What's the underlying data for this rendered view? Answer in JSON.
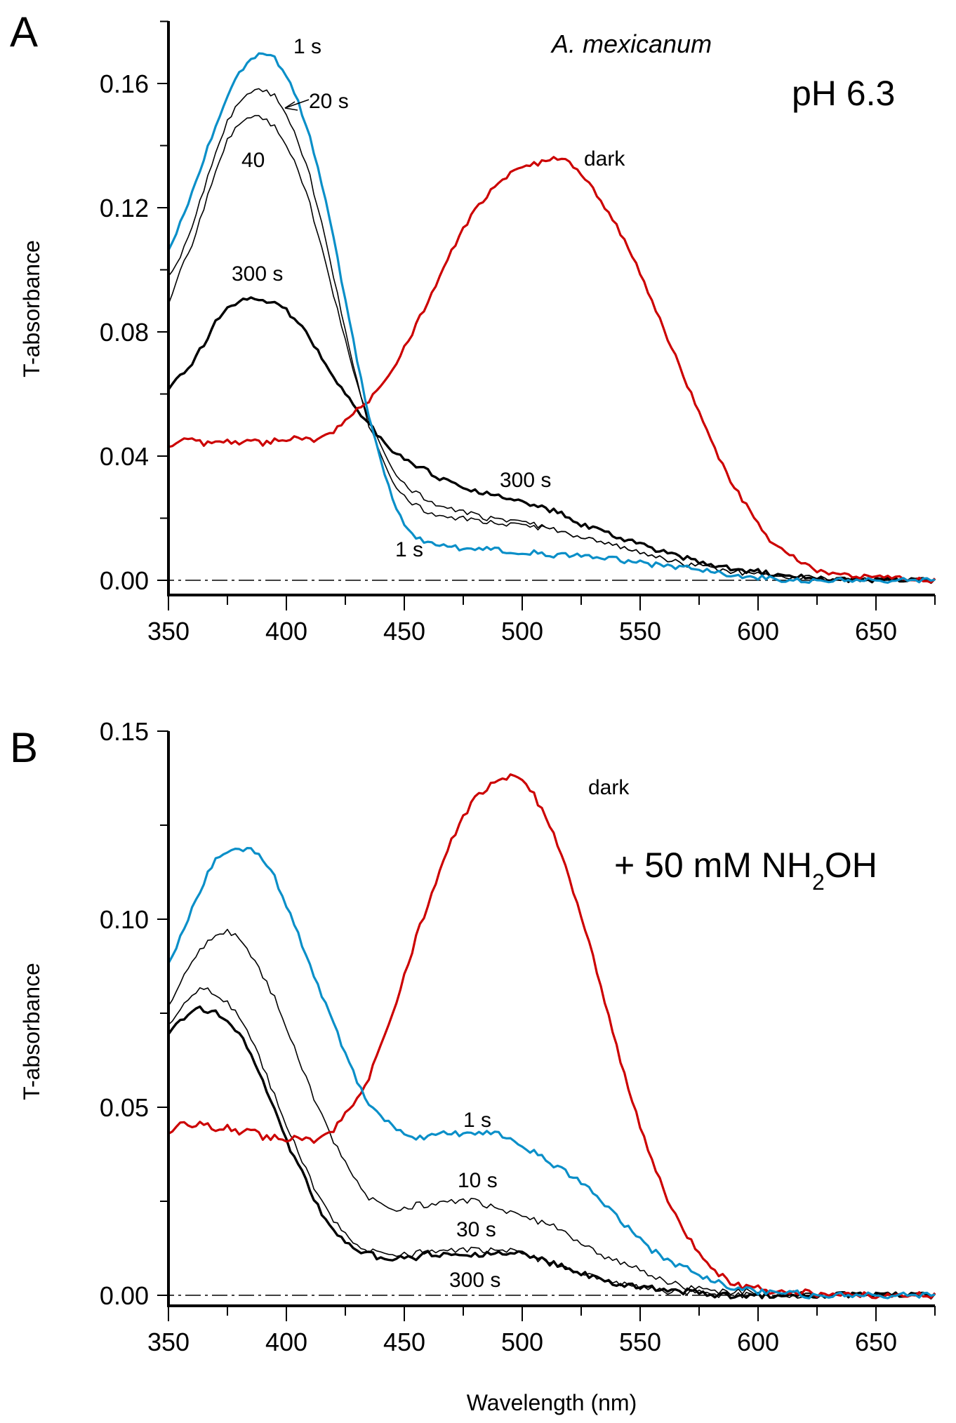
{
  "chart_data": [
    {
      "panel": "A",
      "type": "line",
      "title": "",
      "annotations": {
        "species": "A. mexicanum",
        "condition": "pH 6.3"
      },
      "xlabel": "",
      "ylabel": "T-absorbance",
      "xlim": [
        350,
        675
      ],
      "ylim": [
        -0.005,
        0.18
      ],
      "xticks": [
        350,
        400,
        450,
        500,
        550,
        600,
        650
      ],
      "xtick_labels": [
        "350",
        "400",
        "450",
        "500",
        "550",
        "600",
        "650"
      ],
      "yticks": [
        0.0,
        0.04,
        0.08,
        0.12,
        0.16
      ],
      "ytick_labels": [
        "0.00",
        "0.04",
        "0.08",
        "0.12",
        "0.16"
      ],
      "baseline": 0.0,
      "x": [
        350,
        355,
        360,
        365,
        370,
        375,
        380,
        385,
        390,
        395,
        400,
        405,
        410,
        415,
        420,
        425,
        430,
        435,
        440,
        445,
        450,
        455,
        460,
        465,
        470,
        475,
        480,
        485,
        490,
        495,
        500,
        505,
        510,
        515,
        520,
        525,
        530,
        535,
        540,
        545,
        550,
        555,
        560,
        565,
        570,
        575,
        580,
        585,
        590,
        595,
        600,
        605,
        610,
        615,
        620,
        625,
        630,
        635,
        640,
        645,
        650,
        655,
        660,
        665,
        670,
        675
      ],
      "series": [
        {
          "name": "dark",
          "label": "dark",
          "color": "#cc0000",
          "weight": "medium",
          "values": [
            0.043,
            0.045,
            0.046,
            0.044,
            0.045,
            0.045,
            0.044,
            0.045,
            0.044,
            0.045,
            0.045,
            0.046,
            0.045,
            0.046,
            0.048,
            0.051,
            0.055,
            0.058,
            0.062,
            0.068,
            0.075,
            0.082,
            0.09,
            0.098,
            0.106,
            0.113,
            0.119,
            0.124,
            0.128,
            0.131,
            0.133,
            0.134,
            0.135,
            0.136,
            0.135,
            0.131,
            0.126,
            0.12,
            0.114,
            0.107,
            0.099,
            0.09,
            0.081,
            0.072,
            0.063,
            0.054,
            0.045,
            0.037,
            0.03,
            0.024,
            0.018,
            0.013,
            0.01,
            0.008,
            0.005,
            0.003,
            0.002,
            0.002,
            0.001,
            0.001,
            0.001,
            0.001,
            0.001,
            0.0,
            0.0,
            0.0
          ]
        },
        {
          "name": "1 s",
          "label": "1 s",
          "color": "#0a8fc8",
          "weight": "medium",
          "values": [
            0.106,
            0.115,
            0.125,
            0.136,
            0.146,
            0.156,
            0.163,
            0.168,
            0.17,
            0.168,
            0.163,
            0.154,
            0.143,
            0.128,
            0.11,
            0.09,
            0.071,
            0.053,
            0.038,
            0.026,
            0.018,
            0.014,
            0.012,
            0.011,
            0.011,
            0.01,
            0.01,
            0.01,
            0.01,
            0.009,
            0.009,
            0.009,
            0.008,
            0.008,
            0.008,
            0.008,
            0.007,
            0.007,
            0.007,
            0.006,
            0.006,
            0.005,
            0.005,
            0.004,
            0.004,
            0.003,
            0.003,
            0.002,
            0.002,
            0.001,
            0.001,
            0.001,
            0.0,
            0.0,
            0.0,
            0.0,
            0.0,
            0.0,
            0.0,
            0.0,
            0.0,
            0.0,
            0.0,
            0.0,
            0.0,
            0.0
          ]
        },
        {
          "name": "20 s",
          "label": "20 s",
          "color": "#000000",
          "weight": "thin",
          "values": [
            0.098,
            0.104,
            0.114,
            0.126,
            0.138,
            0.148,
            0.154,
            0.157,
            0.158,
            0.156,
            0.15,
            0.141,
            0.13,
            0.115,
            0.098,
            0.08,
            0.064,
            0.05,
            0.04,
            0.032,
            0.027,
            0.024,
            0.022,
            0.021,
            0.02,
            0.02,
            0.019,
            0.019,
            0.018,
            0.018,
            0.018,
            0.017,
            0.017,
            0.016,
            0.015,
            0.014,
            0.013,
            0.012,
            0.011,
            0.01,
            0.009,
            0.008,
            0.007,
            0.006,
            0.005,
            0.005,
            0.004,
            0.003,
            0.003,
            0.002,
            0.002,
            0.002,
            0.001,
            0.001,
            0.001,
            0.001,
            0.0,
            0.0,
            0.0,
            0.0,
            0.0,
            0.0,
            0.0,
            0.0,
            0.0,
            0.0
          ]
        },
        {
          "name": "40 s",
          "label": "40",
          "color": "#000000",
          "weight": "thin",
          "values": [
            0.089,
            0.1,
            0.108,
            0.12,
            0.132,
            0.142,
            0.147,
            0.149,
            0.149,
            0.146,
            0.14,
            0.132,
            0.121,
            0.107,
            0.092,
            0.077,
            0.063,
            0.052,
            0.043,
            0.036,
            0.031,
            0.028,
            0.026,
            0.024,
            0.023,
            0.022,
            0.021,
            0.02,
            0.02,
            0.019,
            0.019,
            0.018,
            0.017,
            0.016,
            0.015,
            0.014,
            0.013,
            0.012,
            0.011,
            0.01,
            0.009,
            0.008,
            0.007,
            0.006,
            0.005,
            0.005,
            0.004,
            0.003,
            0.003,
            0.002,
            0.002,
            0.002,
            0.001,
            0.001,
            0.001,
            0.001,
            0.0,
            0.0,
            0.0,
            0.0,
            0.0,
            0.0,
            0.0,
            0.0,
            0.0,
            0.0
          ]
        },
        {
          "name": "300 s",
          "label": "300 s",
          "color": "#000000",
          "weight": "thick",
          "values": [
            0.062,
            0.066,
            0.07,
            0.076,
            0.083,
            0.088,
            0.09,
            0.091,
            0.09,
            0.089,
            0.087,
            0.083,
            0.078,
            0.072,
            0.066,
            0.06,
            0.055,
            0.05,
            0.046,
            0.042,
            0.039,
            0.037,
            0.035,
            0.033,
            0.032,
            0.03,
            0.029,
            0.028,
            0.027,
            0.026,
            0.025,
            0.024,
            0.023,
            0.022,
            0.02,
            0.018,
            0.017,
            0.016,
            0.014,
            0.013,
            0.012,
            0.01,
            0.009,
            0.008,
            0.007,
            0.006,
            0.005,
            0.004,
            0.004,
            0.003,
            0.003,
            0.002,
            0.002,
            0.001,
            0.001,
            0.001,
            0.0,
            0.0,
            0.0,
            0.0,
            0.0,
            0.0,
            0.0,
            0.0,
            0.0,
            0.0
          ]
        }
      ],
      "curve_labels": [
        {
          "text": "1 s",
          "series": "1 s",
          "near": [
            420,
            0.168
          ]
        },
        {
          "text": "20 s",
          "series": "20 s",
          "near": [
            416,
            0.154
          ],
          "arrow_to": [
            397,
            0.151
          ]
        },
        {
          "text": "40",
          "series": "40 s",
          "near": [
            393,
            0.137
          ]
        },
        {
          "text": "300 s",
          "series": "300 s",
          "near": [
            390,
            0.097
          ]
        },
        {
          "text": "300 s",
          "series": "300 s",
          "near": [
            504,
            0.029
          ]
        },
        {
          "text": "1 s",
          "series": "1 s",
          "near": [
            450,
            0.008
          ]
        },
        {
          "text": "dark",
          "series": "dark",
          "near": [
            541,
            0.136
          ]
        }
      ]
    },
    {
      "panel": "B",
      "type": "line",
      "title": "",
      "annotations": {
        "condition": "+ 50 mM NH2OH",
        "condition_main": "+ 50 mM NH",
        "condition_sub": "2",
        "condition_tail": "OH"
      },
      "xlabel": "Wavelength (nm)",
      "ylabel": "T-absorbance",
      "xlim": [
        350,
        675
      ],
      "ylim": [
        -0.003,
        0.15
      ],
      "xticks": [
        350,
        400,
        450,
        500,
        550,
        600,
        650
      ],
      "xtick_labels": [
        "350",
        "400",
        "450",
        "500",
        "550",
        "600",
        "650"
      ],
      "yticks": [
        0.0,
        0.05,
        0.1,
        0.15
      ],
      "ytick_labels": [
        "0.00",
        "0.05",
        "0.10",
        "0.15"
      ],
      "baseline": 0.0,
      "x": [
        350,
        355,
        360,
        365,
        370,
        375,
        380,
        385,
        390,
        395,
        400,
        405,
        410,
        415,
        420,
        425,
        430,
        435,
        440,
        445,
        450,
        455,
        460,
        465,
        470,
        475,
        480,
        485,
        490,
        495,
        500,
        505,
        510,
        515,
        520,
        525,
        530,
        535,
        540,
        545,
        550,
        555,
        560,
        565,
        570,
        575,
        580,
        585,
        590,
        595,
        600,
        605,
        610,
        615,
        620,
        625,
        630,
        635,
        640,
        645,
        650,
        655,
        660,
        665,
        670,
        675
      ],
      "series": [
        {
          "name": "dark",
          "label": "dark",
          "color": "#cc0000",
          "weight": "medium",
          "values": [
            0.043,
            0.046,
            0.045,
            0.046,
            0.044,
            0.045,
            0.043,
            0.044,
            0.042,
            0.042,
            0.041,
            0.042,
            0.041,
            0.042,
            0.044,
            0.048,
            0.052,
            0.058,
            0.066,
            0.075,
            0.085,
            0.095,
            0.104,
            0.113,
            0.121,
            0.127,
            0.132,
            0.135,
            0.137,
            0.138,
            0.137,
            0.133,
            0.127,
            0.12,
            0.111,
            0.101,
            0.09,
            0.078,
            0.066,
            0.055,
            0.045,
            0.036,
            0.028,
            0.021,
            0.016,
            0.011,
            0.007,
            0.005,
            0.003,
            0.002,
            0.002,
            0.001,
            0.001,
            0.001,
            0.001,
            0.0,
            0.0,
            0.0,
            0.0,
            0.0,
            -0.001,
            0.0,
            0.0,
            0.0,
            0.0,
            0.0
          ]
        },
        {
          "name": "1 s",
          "label": "1 s",
          "color": "#0a8fc8",
          "weight": "medium",
          "values": [
            0.088,
            0.095,
            0.103,
            0.11,
            0.116,
            0.118,
            0.118,
            0.119,
            0.116,
            0.111,
            0.104,
            0.096,
            0.088,
            0.08,
            0.072,
            0.064,
            0.057,
            0.051,
            0.047,
            0.045,
            0.043,
            0.042,
            0.042,
            0.043,
            0.043,
            0.043,
            0.043,
            0.043,
            0.043,
            0.042,
            0.04,
            0.038,
            0.036,
            0.034,
            0.032,
            0.03,
            0.027,
            0.024,
            0.021,
            0.018,
            0.015,
            0.012,
            0.01,
            0.008,
            0.007,
            0.005,
            0.004,
            0.003,
            0.002,
            0.002,
            0.001,
            0.001,
            0.001,
            0.001,
            0.0,
            0.0,
            0.0,
            0.0,
            0.0,
            0.0,
            0.0,
            0.0,
            0.0,
            0.0,
            0.0,
            0.0
          ]
        },
        {
          "name": "10 s",
          "label": "10 s",
          "color": "#000000",
          "weight": "thin",
          "values": [
            0.077,
            0.083,
            0.089,
            0.093,
            0.096,
            0.097,
            0.095,
            0.09,
            0.085,
            0.079,
            0.071,
            0.063,
            0.055,
            0.048,
            0.041,
            0.035,
            0.03,
            0.026,
            0.024,
            0.023,
            0.023,
            0.024,
            0.024,
            0.025,
            0.025,
            0.025,
            0.025,
            0.024,
            0.023,
            0.022,
            0.021,
            0.02,
            0.019,
            0.018,
            0.016,
            0.014,
            0.012,
            0.01,
            0.009,
            0.008,
            0.007,
            0.005,
            0.004,
            0.003,
            0.002,
            0.002,
            0.001,
            0.001,
            0.001,
            0.001,
            0.0,
            0.0,
            0.0,
            0.0,
            0.0,
            0.0,
            0.0,
            0.0,
            0.0,
            0.0,
            0.0,
            0.0,
            0.0,
            0.0,
            0.0,
            0.0
          ]
        },
        {
          "name": "30 s",
          "label": "30 s",
          "color": "#000000",
          "weight": "thin",
          "values": [
            0.072,
            0.076,
            0.08,
            0.082,
            0.08,
            0.078,
            0.074,
            0.068,
            0.061,
            0.053,
            0.045,
            0.038,
            0.031,
            0.025,
            0.02,
            0.016,
            0.013,
            0.012,
            0.011,
            0.011,
            0.011,
            0.011,
            0.012,
            0.012,
            0.012,
            0.012,
            0.012,
            0.012,
            0.012,
            0.012,
            0.011,
            0.01,
            0.009,
            0.008,
            0.007,
            0.006,
            0.005,
            0.004,
            0.003,
            0.003,
            0.002,
            0.002,
            0.001,
            0.001,
            0.001,
            0.001,
            0.0,
            0.0,
            0.0,
            0.0,
            0.0,
            0.0,
            0.0,
            0.0,
            0.0,
            0.0,
            0.0,
            0.0,
            0.0,
            0.0,
            0.0,
            0.0,
            0.0,
            0.0,
            0.0,
            0.0
          ]
        },
        {
          "name": "300 s",
          "label": "300 s",
          "color": "#000000",
          "weight": "thick",
          "values": [
            0.07,
            0.073,
            0.076,
            0.076,
            0.075,
            0.073,
            0.07,
            0.064,
            0.057,
            0.049,
            0.041,
            0.035,
            0.028,
            0.022,
            0.018,
            0.014,
            0.012,
            0.011,
            0.01,
            0.01,
            0.01,
            0.01,
            0.011,
            0.011,
            0.011,
            0.011,
            0.011,
            0.011,
            0.011,
            0.011,
            0.011,
            0.01,
            0.009,
            0.008,
            0.007,
            0.006,
            0.005,
            0.004,
            0.003,
            0.003,
            0.002,
            0.002,
            0.001,
            0.001,
            0.001,
            0.001,
            0.0,
            0.0,
            0.0,
            0.0,
            0.0,
            0.0,
            0.0,
            0.0,
            0.0,
            0.0,
            0.0,
            0.0,
            0.0,
            0.0,
            0.0,
            0.0,
            0.0,
            0.0,
            0.0,
            0.0
          ]
        }
      ],
      "curve_labels": [
        {
          "text": "dark",
          "series": "dark",
          "near": [
            525,
            0.138
          ]
        },
        {
          "text": "1 s",
          "series": "1 s",
          "near": [
            480,
            0.048
          ]
        },
        {
          "text": "10 s",
          "series": "10 s",
          "near": [
            480,
            0.028
          ]
        },
        {
          "text": "30 s",
          "series": "30 s",
          "near": [
            478,
            0.016
          ]
        },
        {
          "text": "300 s",
          "series": "300 s",
          "near": [
            478,
            0.004
          ]
        }
      ]
    }
  ],
  "figure": {
    "panel_letters": [
      "A",
      "B"
    ]
  }
}
